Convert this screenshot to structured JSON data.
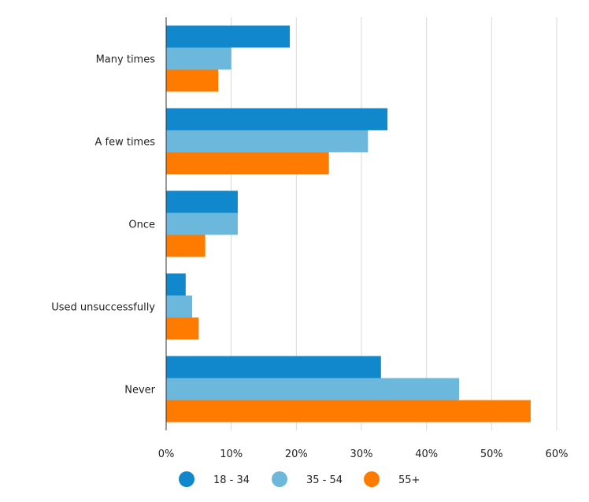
{
  "chart_data": {
    "type": "bar",
    "orientation": "horizontal",
    "title": "",
    "xlabel": "",
    "ylabel": "",
    "categories": [
      "Many times",
      "A few times",
      "Once",
      "Used unsuccessfully",
      "Never"
    ],
    "series": [
      {
        "name": "18 - 34",
        "color": "#1188CC",
        "values": [
          19,
          34,
          11,
          3,
          33
        ]
      },
      {
        "name": "35 - 54",
        "color": "#6CB8DC",
        "values": [
          10,
          31,
          11,
          4,
          45
        ]
      },
      {
        "name": "55+",
        "color": "#FF7B00",
        "values": [
          8,
          25,
          6,
          5,
          56
        ]
      }
    ],
    "xlim": [
      0,
      60
    ],
    "x_ticks": [
      0,
      10,
      20,
      30,
      40,
      50,
      60
    ],
    "x_tick_labels": [
      "0%",
      "10%",
      "20%",
      "30%",
      "40%",
      "50%",
      "60%"
    ],
    "grid": true,
    "legend_position": "bottom-center"
  }
}
